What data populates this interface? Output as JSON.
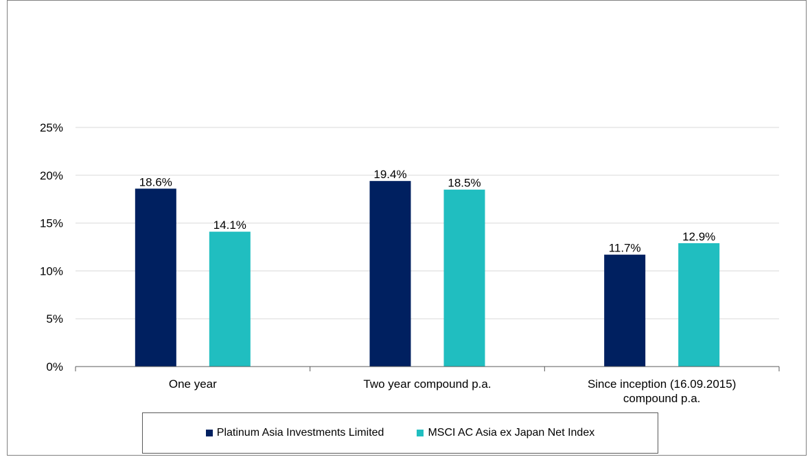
{
  "chart_data": {
    "type": "bar",
    "categories": [
      [
        "One year"
      ],
      [
        "Two year compound p.a."
      ],
      [
        "Since inception (16.09.2015)",
        "compound p.a."
      ]
    ],
    "series": [
      {
        "name": "Platinum Asia Investments Limited",
        "values": [
          18.6,
          19.4,
          11.7
        ],
        "labels": [
          "18.6%",
          "19.4%",
          "11.7%"
        ],
        "color": "#002060"
      },
      {
        "name": "MSCI AC Asia ex Japan Net Index",
        "values": [
          14.1,
          18.5,
          12.9
        ],
        "labels": [
          "14.1%",
          "18.5%",
          "12.9%"
        ],
        "color": "#20BEC0"
      }
    ],
    "yticks": [
      "0%",
      "5%",
      "10%",
      "15%",
      "20%",
      "25%"
    ],
    "ytick_values": [
      0,
      5,
      10,
      15,
      20,
      25
    ],
    "ylim": [
      0,
      25
    ],
    "grid": true,
    "legend_position": "bottom",
    "title": "",
    "xlabel": "",
    "ylabel": ""
  }
}
